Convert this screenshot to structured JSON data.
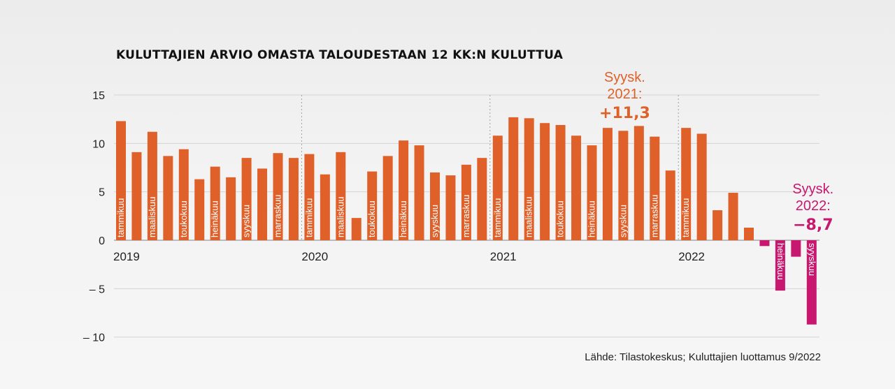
{
  "chart_data": {
    "type": "bar",
    "title": "KULUTTAJIEN ARVIO OMASTA TALOUDESTAAN 12 KK:N KULUTTUA",
    "source": "Lähde: Tilastokeskus; Kuluttajien luottamus 9/2022",
    "ylim": [
      -10,
      15
    ],
    "yticks": [
      15,
      10,
      5,
      0,
      -5,
      -10
    ],
    "ytick_labels": [
      "15",
      "10",
      "5",
      "0",
      "– 5",
      "– 10"
    ],
    "grid": true,
    "colors": {
      "positive": "#E0602A",
      "negative": "#C8176F",
      "grid": "#d4d4d4",
      "zero": "#9a9a9a",
      "year_divider": "#a0a0a0"
    },
    "years": [
      {
        "label": "2019",
        "start_index": 0
      },
      {
        "label": "2020",
        "start_index": 12
      },
      {
        "label": "2021",
        "start_index": 24
      },
      {
        "label": "2022",
        "start_index": 36
      }
    ],
    "year_divider_indices": [
      12,
      24,
      36
    ],
    "values": [
      12.3,
      9.1,
      11.2,
      8.7,
      9.4,
      6.3,
      7.6,
      6.5,
      8.5,
      7.4,
      9.0,
      8.5,
      8.9,
      6.8,
      9.1,
      2.3,
      7.1,
      8.7,
      10.3,
      9.8,
      7.0,
      6.7,
      7.8,
      8.5,
      10.8,
      12.7,
      12.6,
      12.1,
      11.9,
      10.8,
      9.8,
      11.6,
      11.3,
      11.8,
      10.7,
      7.2,
      11.6,
      11.0,
      3.1,
      4.9,
      1.3,
      -0.6,
      -5.2,
      -1.7,
      -8.7
    ],
    "month_labels": [
      {
        "index": 0,
        "text": "tammikuu"
      },
      {
        "index": 2,
        "text": "maaliskuu"
      },
      {
        "index": 4,
        "text": "toukokuu"
      },
      {
        "index": 6,
        "text": "heinäkuu"
      },
      {
        "index": 8,
        "text": "syyskuu"
      },
      {
        "index": 10,
        "text": "marraskuu"
      },
      {
        "index": 12,
        "text": "tammikuu"
      },
      {
        "index": 14,
        "text": "maaliskuu"
      },
      {
        "index": 16,
        "text": "toukokuu"
      },
      {
        "index": 18,
        "text": "heinäkuu"
      },
      {
        "index": 20,
        "text": "syyskuu"
      },
      {
        "index": 22,
        "text": "marraskuu"
      },
      {
        "index": 24,
        "text": "tammikuu"
      },
      {
        "index": 26,
        "text": "maaliskuu"
      },
      {
        "index": 28,
        "text": "toukokuu"
      },
      {
        "index": 30,
        "text": "heinäkuu"
      },
      {
        "index": 32,
        "text": "syyskuu"
      },
      {
        "index": 34,
        "text": "marraskuu"
      },
      {
        "index": 36,
        "text": "tammikuu"
      },
      {
        "index": 42,
        "text": "heinäkuu"
      },
      {
        "index": 44,
        "text": "syyskuu"
      }
    ],
    "annotations": [
      {
        "index": 32,
        "label_line1": "Syysk.",
        "label_line2": "2021:",
        "value": "+11,3",
        "color": "#E0602A"
      },
      {
        "index": 44,
        "label_line1": "Syysk.",
        "label_line2": "2022:",
        "value": "−8,7",
        "color": "#C8176F"
      }
    ]
  }
}
